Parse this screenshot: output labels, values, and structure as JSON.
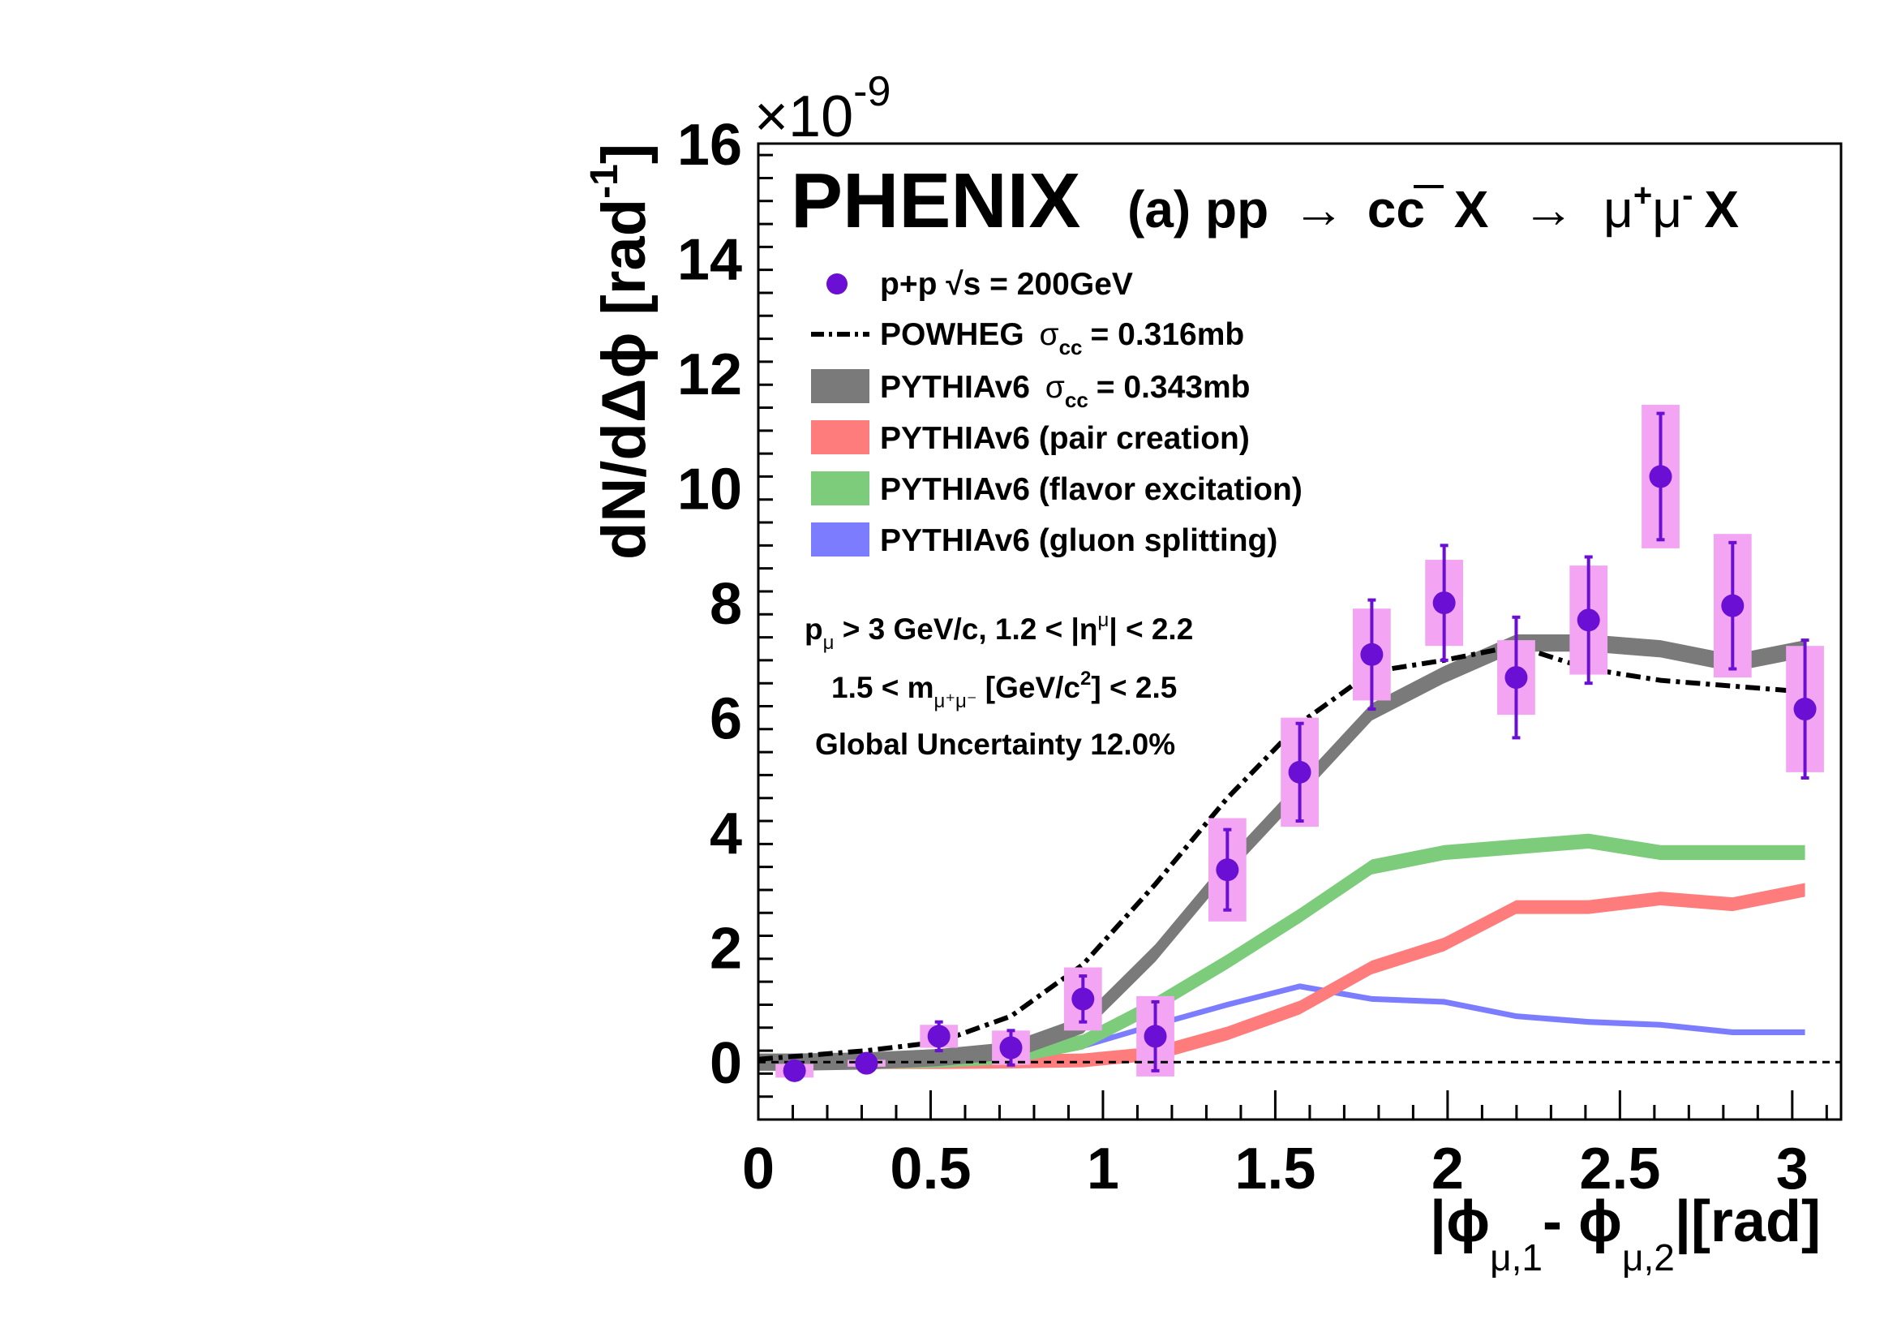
{
  "chart_data": {
    "type": "line",
    "experiment_label": "PHENIX",
    "process_label": "(a) pp",
    "process_arrow": "→",
    "process_cc": "cc",
    "process_x": "X",
    "process_mumu": "μ",
    "ylabel": "dN/dΔϕ [rad",
    "ylabel_exp": "-1",
    "ylabel_close": "]",
    "y_multiplier": "×10",
    "y_multiplier_exp": "-9",
    "xlabel": "|ϕ",
    "xlabel_sub1": "μ,1",
    "xlabel_minus": "-  ϕ",
    "xlabel_sub2": "μ,2",
    "xlabel_unit": "|[rad]",
    "xlim": [
      0,
      3.14159
    ],
    "ylim": [
      -1,
      16
    ],
    "xticks": [
      0,
      0.5,
      1,
      1.5,
      2,
      2.5,
      3
    ],
    "xtick_labels": [
      "0",
      "0.5",
      "1",
      "1.5",
      "2",
      "2.5",
      "3"
    ],
    "yticks": [
      0,
      2,
      4,
      6,
      8,
      10,
      12,
      14,
      16
    ],
    "ytick_labels": [
      "0",
      "2",
      "4",
      "6",
      "8",
      "10",
      "12",
      "14",
      "16"
    ],
    "zero_line": true,
    "legend": {
      "placement": "top-left",
      "data_label": "p+p  √s = 200GeV",
      "powheg_label": "POWHEG",
      "powheg_sigma": "σ",
      "powheg_sigma_sub": "cc",
      "powheg_value": "= 0.316mb",
      "pythia_label": "PYTHIAv6",
      "pythia_sigma": "σ",
      "pythia_sigma_sub": "cc",
      "pythia_value": "= 0.343mb",
      "pair_label": "PYTHIAv6 (pair creation)",
      "flavor_label": "PYTHIAv6 (flavor excitation)",
      "gluon_label": "PYTHIAv6 (gluon splitting)"
    },
    "cuts": {
      "line1_a": "p",
      "line1_sub": "μ",
      "line1_b": " > 3 GeV/c, 1.2 < |η",
      "line1_sup": "μ",
      "line1_c": "| < 2.2",
      "line2_a": "1.5 < m",
      "line2_sub": "μ⁺μ⁻",
      "line2_b": " [GeV/c",
      "line2_sup": "2",
      "line2_c": "] < 2.5",
      "line3": "Global Uncertainty 12.0%"
    },
    "colors": {
      "data": "#6a0fd3",
      "data_sys": "#f3a5f3",
      "powheg": "#000000",
      "pythia_total": "#7a7a7a",
      "pair_creation": "#ff7c7c",
      "flavor_excitation": "#7ccc7c",
      "gluon_splitting": "#7c7cff"
    },
    "data_points": {
      "name": "p+p  √s = 200GeV",
      "x": [
        0.105,
        0.314,
        0.524,
        0.733,
        0.942,
        1.152,
        1.361,
        1.571,
        1.78,
        1.99,
        2.199,
        2.409,
        2.618,
        2.827,
        3.037
      ],
      "y": [
        -0.15,
        -0.02,
        0.45,
        0.25,
        1.1,
        0.45,
        3.35,
        5.05,
        7.1,
        8.0,
        6.7,
        7.7,
        10.2,
        7.95,
        6.15
      ],
      "stat_err": [
        0.15,
        0.08,
        0.25,
        0.3,
        0.4,
        0.6,
        0.7,
        0.85,
        0.95,
        1.0,
        1.05,
        1.1,
        1.1,
        1.1,
        1.2
      ],
      "sys_err": [
        0.12,
        0.06,
        0.2,
        0.3,
        0.55,
        0.7,
        0.9,
        0.95,
        0.8,
        0.75,
        0.65,
        0.95,
        1.25,
        1.25,
        1.1
      ]
    },
    "series": [
      {
        "name": "POWHEG",
        "style": "dash-dot",
        "x": [
          0.0,
          0.105,
          0.314,
          0.524,
          0.733,
          0.942,
          1.152,
          1.361,
          1.571,
          1.78,
          1.99,
          2.199,
          2.409,
          2.618,
          2.827,
          3.037
        ],
        "y": [
          0.05,
          0.1,
          0.2,
          0.35,
          0.8,
          1.7,
          3.1,
          4.6,
          5.9,
          6.8,
          7.0,
          7.25,
          6.85,
          6.65,
          6.55,
          6.45
        ]
      },
      {
        "name": "PYTHIAv6",
        "style": "band",
        "x": [
          0.0,
          0.105,
          0.314,
          0.524,
          0.733,
          0.942,
          1.152,
          1.361,
          1.571,
          1.78,
          1.99,
          2.199,
          2.409,
          2.618,
          2.827,
          3.037
        ],
        "y": [
          0.0,
          0.0,
          0.02,
          0.08,
          0.2,
          0.65,
          1.9,
          3.4,
          4.75,
          6.1,
          6.75,
          7.3,
          7.3,
          7.2,
          6.95,
          7.2
        ],
        "half_width": 0.15
      },
      {
        "name": "PYTHIAv6 (pair creation)",
        "style": "band",
        "x": [
          0.0,
          0.105,
          0.314,
          0.524,
          0.733,
          0.942,
          1.152,
          1.361,
          1.571,
          1.78,
          1.99,
          2.199,
          2.409,
          2.618,
          2.827,
          3.037
        ],
        "y": [
          0.0,
          0.0,
          0.0,
          0.0,
          0.01,
          0.03,
          0.15,
          0.5,
          0.95,
          1.65,
          2.05,
          2.7,
          2.7,
          2.85,
          2.75,
          3.0
        ],
        "half_width": 0.12
      },
      {
        "name": "PYTHIAv6 (flavor excitation)",
        "style": "band",
        "x": [
          0.0,
          0.105,
          0.314,
          0.524,
          0.733,
          0.942,
          1.152,
          1.361,
          1.571,
          1.78,
          1.99,
          2.199,
          2.409,
          2.618,
          2.827,
          3.037
        ],
        "y": [
          0.0,
          0.0,
          0.01,
          0.03,
          0.1,
          0.35,
          1.0,
          1.75,
          2.55,
          3.4,
          3.65,
          3.75,
          3.85,
          3.65,
          3.65,
          3.65
        ],
        "half_width": 0.13
      },
      {
        "name": "PYTHIAv6 (gluon splitting)",
        "style": "band",
        "x": [
          0.0,
          0.105,
          0.314,
          0.524,
          0.733,
          0.942,
          1.152,
          1.361,
          1.571,
          1.78,
          1.99,
          2.199,
          2.409,
          2.618,
          2.827,
          3.037
        ],
        "y": [
          0.0,
          0.0,
          0.01,
          0.04,
          0.12,
          0.28,
          0.65,
          1.0,
          1.32,
          1.1,
          1.05,
          0.8,
          0.7,
          0.65,
          0.52,
          0.52
        ],
        "half_width": 0.05
      }
    ]
  }
}
